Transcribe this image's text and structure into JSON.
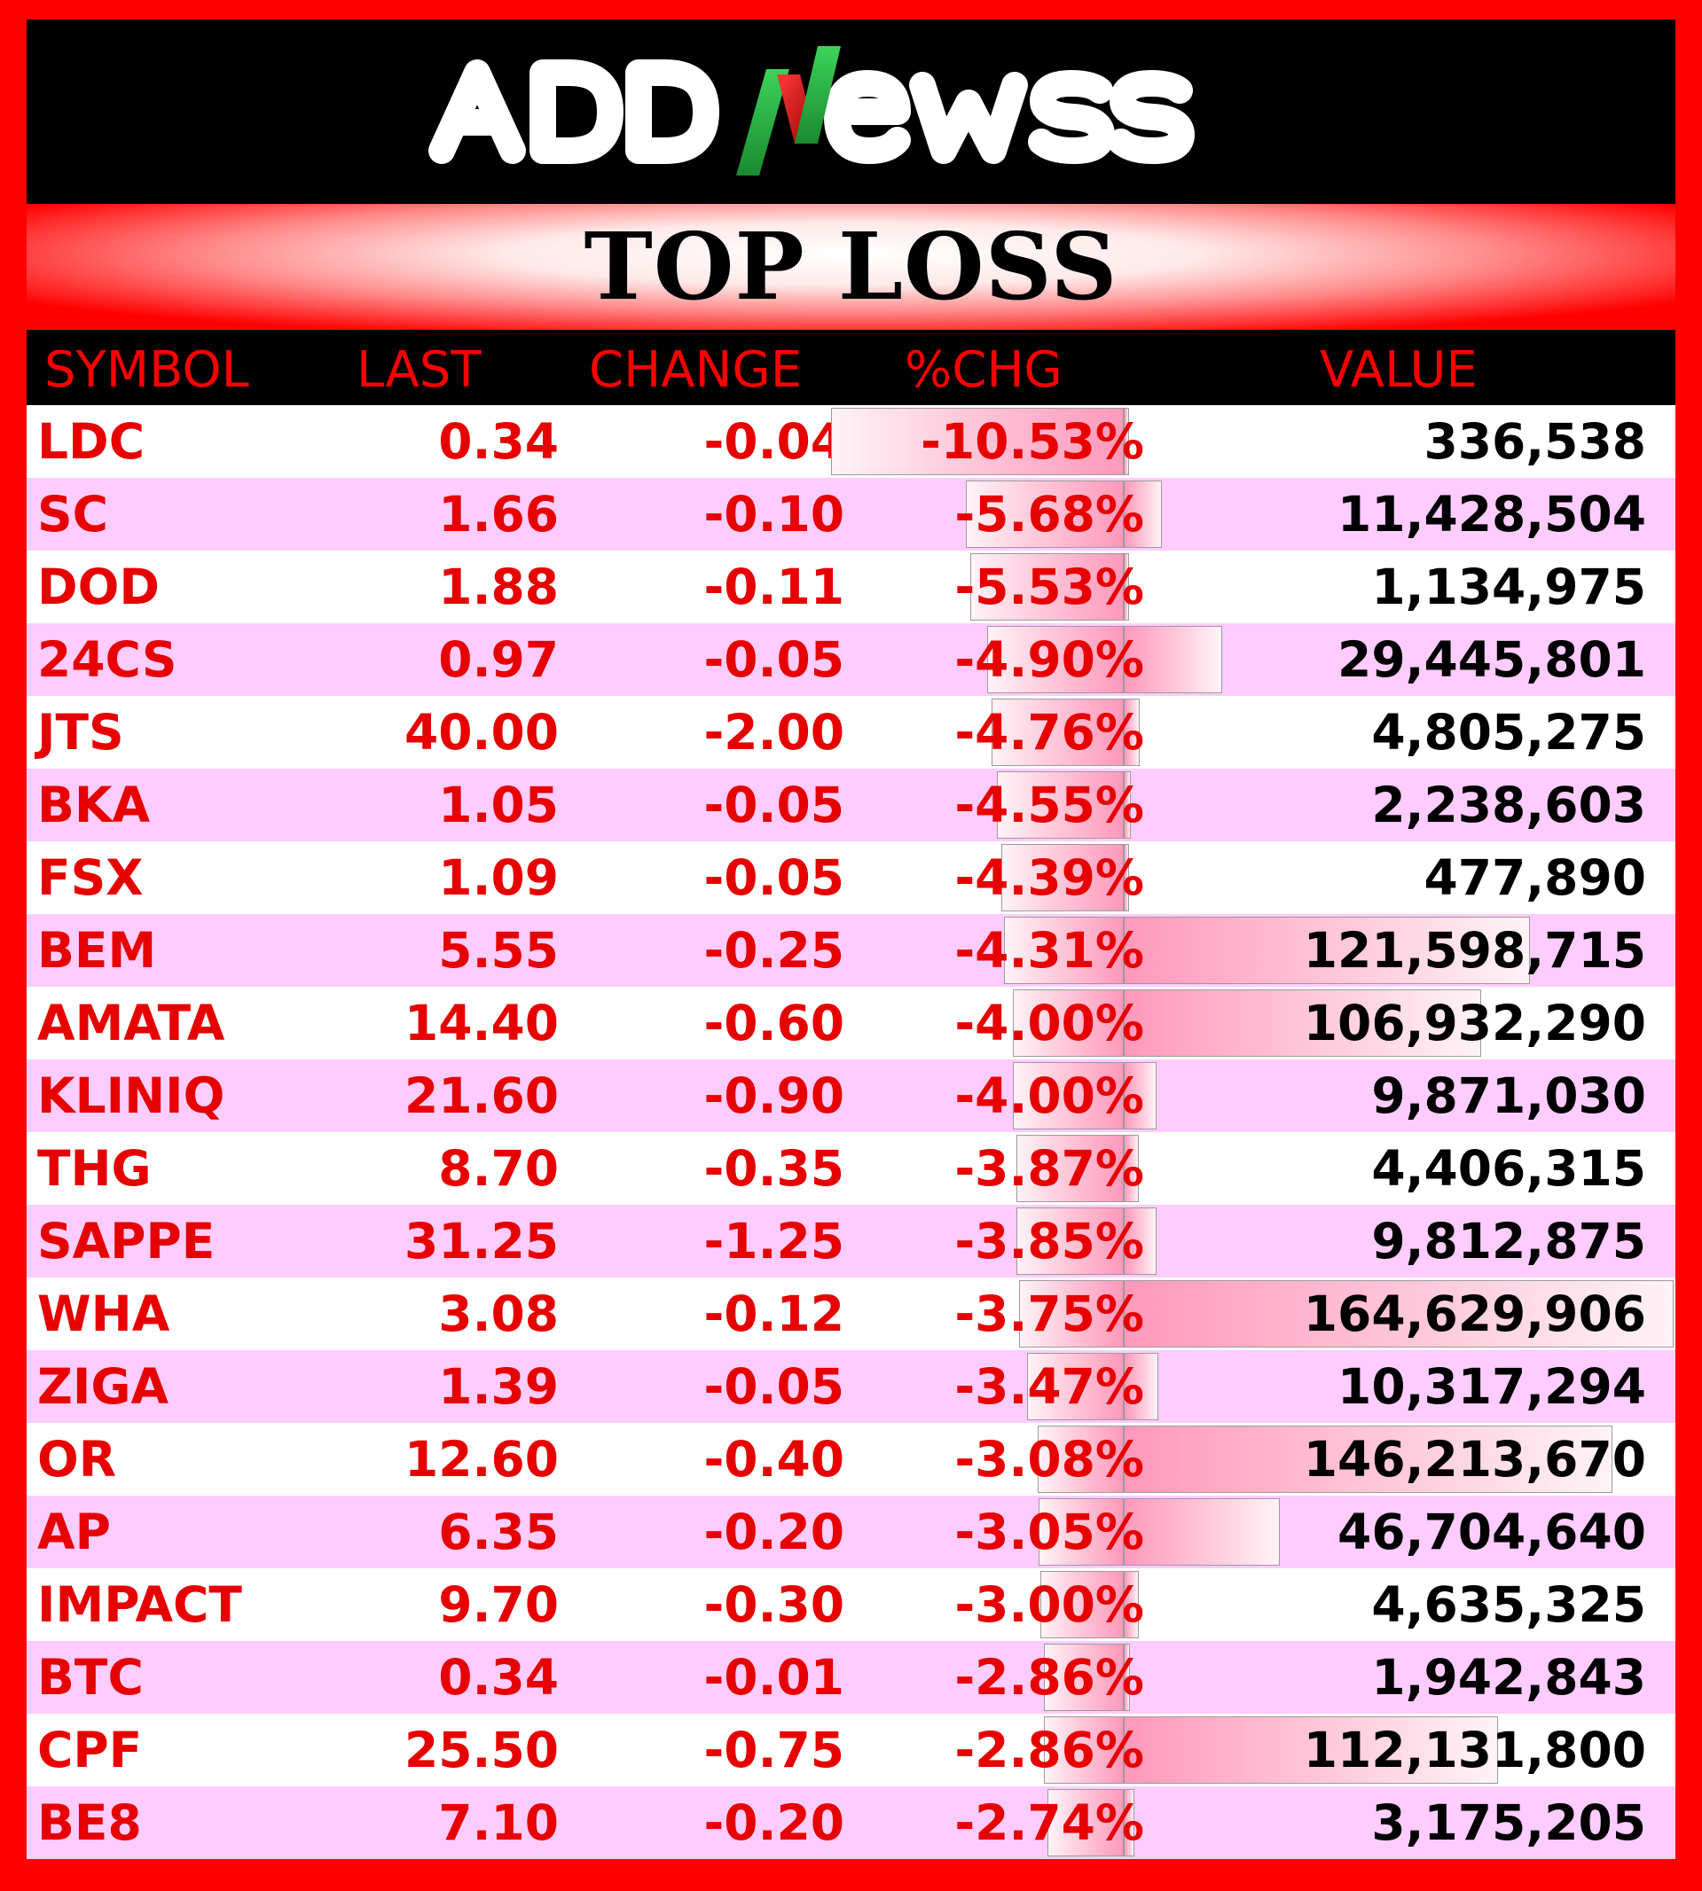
{
  "brand": {
    "logo_text": "ADDNewss",
    "accent_green": "#2db84a",
    "accent_red": "#ff0000"
  },
  "title": "TOP LOSS",
  "columns": {
    "symbol": "SYMBOL",
    "last": "LAST",
    "change": "CHANGE",
    "pct_chg": "%CHG",
    "value": "VALUE"
  },
  "rows": [
    {
      "symbol": "LDC",
      "last": "0.34",
      "change": "-0.04",
      "pct_chg": "-10.53%",
      "pct": -10.53,
      "value": "336,538",
      "value_num": 336538
    },
    {
      "symbol": "SC",
      "last": "1.66",
      "change": "-0.10",
      "pct_chg": "-5.68%",
      "pct": -5.68,
      "value": "11,428,504",
      "value_num": 11428504
    },
    {
      "symbol": "DOD",
      "last": "1.88",
      "change": "-0.11",
      "pct_chg": "-5.53%",
      "pct": -5.53,
      "value": "1,134,975",
      "value_num": 1134975
    },
    {
      "symbol": "24CS",
      "last": "0.97",
      "change": "-0.05",
      "pct_chg": "-4.90%",
      "pct": -4.9,
      "value": "29,445,801",
      "value_num": 29445801
    },
    {
      "symbol": "JTS",
      "last": "40.00",
      "change": "-2.00",
      "pct_chg": "-4.76%",
      "pct": -4.76,
      "value": "4,805,275",
      "value_num": 4805275
    },
    {
      "symbol": "BKA",
      "last": "1.05",
      "change": "-0.05",
      "pct_chg": "-4.55%",
      "pct": -4.55,
      "value": "2,238,603",
      "value_num": 2238603
    },
    {
      "symbol": "FSX",
      "last": "1.09",
      "change": "-0.05",
      "pct_chg": "-4.39%",
      "pct": -4.39,
      "value": "477,890",
      "value_num": 477890
    },
    {
      "symbol": "BEM",
      "last": "5.55",
      "change": "-0.25",
      "pct_chg": "-4.31%",
      "pct": -4.31,
      "value": "121,598,715",
      "value_num": 121598715
    },
    {
      "symbol": "AMATA",
      "last": "14.40",
      "change": "-0.60",
      "pct_chg": "-4.00%",
      "pct": -4.0,
      "value": "106,932,290",
      "value_num": 106932290
    },
    {
      "symbol": "KLINIQ",
      "last": "21.60",
      "change": "-0.90",
      "pct_chg": "-4.00%",
      "pct": -4.0,
      "value": "9,871,030",
      "value_num": 9871030
    },
    {
      "symbol": "THG",
      "last": "8.70",
      "change": "-0.35",
      "pct_chg": "-3.87%",
      "pct": -3.87,
      "value": "4,406,315",
      "value_num": 4406315
    },
    {
      "symbol": "SAPPE",
      "last": "31.25",
      "change": "-1.25",
      "pct_chg": "-3.85%",
      "pct": -3.85,
      "value": "9,812,875",
      "value_num": 9812875
    },
    {
      "symbol": "WHA",
      "last": "3.08",
      "change": "-0.12",
      "pct_chg": "-3.75%",
      "pct": -3.75,
      "value": "164,629,906",
      "value_num": 164629906
    },
    {
      "symbol": "ZIGA",
      "last": "1.39",
      "change": "-0.05",
      "pct_chg": "-3.47%",
      "pct": -3.47,
      "value": "10,317,294",
      "value_num": 10317294
    },
    {
      "symbol": "OR",
      "last": "12.60",
      "change": "-0.40",
      "pct_chg": "-3.08%",
      "pct": -3.08,
      "value": "146,213,670",
      "value_num": 146213670
    },
    {
      "symbol": "AP",
      "last": "6.35",
      "change": "-0.20",
      "pct_chg": "-3.05%",
      "pct": -3.05,
      "value": "46,704,640",
      "value_num": 46704640
    },
    {
      "symbol": "IMPACT",
      "last": "9.70",
      "change": "-0.30",
      "pct_chg": "-3.00%",
      "pct": -3.0,
      "value": "4,635,325",
      "value_num": 4635325
    },
    {
      "symbol": "BTC",
      "last": "0.34",
      "change": "-0.01",
      "pct_chg": "-2.86%",
      "pct": -2.86,
      "value": "1,942,843",
      "value_num": 1942843
    },
    {
      "symbol": "CPF",
      "last": "25.50",
      "change": "-0.75",
      "pct_chg": "-2.86%",
      "pct": -2.86,
      "value": "112,131,800",
      "value_num": 112131800
    },
    {
      "symbol": "BE8",
      "last": "7.10",
      "change": "-0.20",
      "pct_chg": "-2.74%",
      "pct": -2.74,
      "value": "3,175,205",
      "value_num": 3175205
    }
  ]
}
